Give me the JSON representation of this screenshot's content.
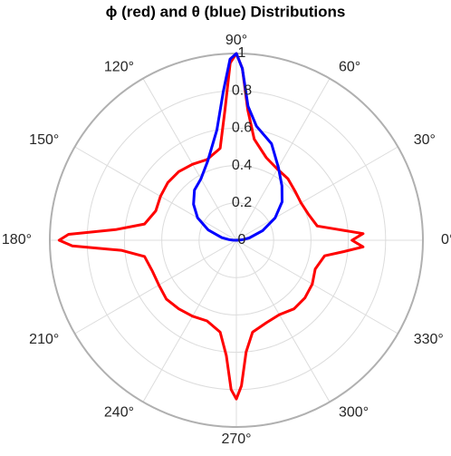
{
  "chart_data": {
    "type": "polar",
    "title": "ϕ (red) and θ (blue) Distributions",
    "x": [
      0,
      3,
      6,
      10,
      20,
      30,
      40,
      50,
      60,
      70,
      80,
      85,
      88,
      90,
      92,
      95,
      100,
      110,
      120,
      130,
      140,
      150,
      160,
      170,
      175,
      178,
      180,
      182,
      185,
      190,
      200,
      210,
      220,
      230,
      240,
      250,
      260,
      265,
      268,
      270,
      272,
      275,
      280,
      290,
      300,
      310,
      320,
      330,
      340,
      350,
      354,
      357
    ],
    "series": [
      {
        "name": "ϕ",
        "color": "#ff0000",
        "values": [
          0.62,
          0.68,
          0.55,
          0.44,
          0.41,
          0.4,
          0.41,
          0.43,
          0.44,
          0.47,
          0.55,
          0.7,
          0.92,
          1.0,
          0.95,
          0.7,
          0.5,
          0.46,
          0.47,
          0.48,
          0.48,
          0.47,
          0.46,
          0.5,
          0.65,
          0.9,
          0.95,
          0.88,
          0.62,
          0.5,
          0.48,
          0.48,
          0.49,
          0.48,
          0.47,
          0.46,
          0.5,
          0.62,
          0.8,
          0.85,
          0.78,
          0.6,
          0.5,
          0.47,
          0.46,
          0.48,
          0.48,
          0.47,
          0.45,
          0.48,
          0.58,
          0.68
        ]
      },
      {
        "name": "θ",
        "color": "#0000ff",
        "values": [
          0,
          0.02,
          0.04,
          0.07,
          0.15,
          0.24,
          0.32,
          0.38,
          0.45,
          0.55,
          0.62,
          0.72,
          0.92,
          1.0,
          0.97,
          0.8,
          0.6,
          0.45,
          0.38,
          0.35,
          0.3,
          0.24,
          0.16,
          0.08,
          0.04,
          0.02,
          0,
          0,
          0,
          0,
          0,
          0,
          0,
          0,
          0,
          0,
          0,
          0,
          0,
          0,
          0,
          0,
          0,
          0,
          0,
          0,
          0,
          0,
          0,
          0,
          0,
          0
        ]
      }
    ],
    "rlim": [
      0,
      1
    ],
    "rticks": [
      0,
      0.2,
      0.4,
      0.6,
      0.8,
      1
    ],
    "thetaticks": [
      {
        "value": 0,
        "label": "0°"
      },
      {
        "value": 30,
        "label": "30°"
      },
      {
        "value": 60,
        "label": "60°"
      },
      {
        "value": 90,
        "label": "90°"
      },
      {
        "value": 120,
        "label": "120°"
      },
      {
        "value": 150,
        "label": "150°"
      },
      {
        "value": 180,
        "label": "180°"
      },
      {
        "value": 210,
        "label": "210°"
      },
      {
        "value": 240,
        "label": "240°"
      },
      {
        "value": 270,
        "label": "270°"
      },
      {
        "value": 300,
        "label": "300°"
      },
      {
        "value": 330,
        "label": "330°"
      }
    ],
    "grid": true
  }
}
